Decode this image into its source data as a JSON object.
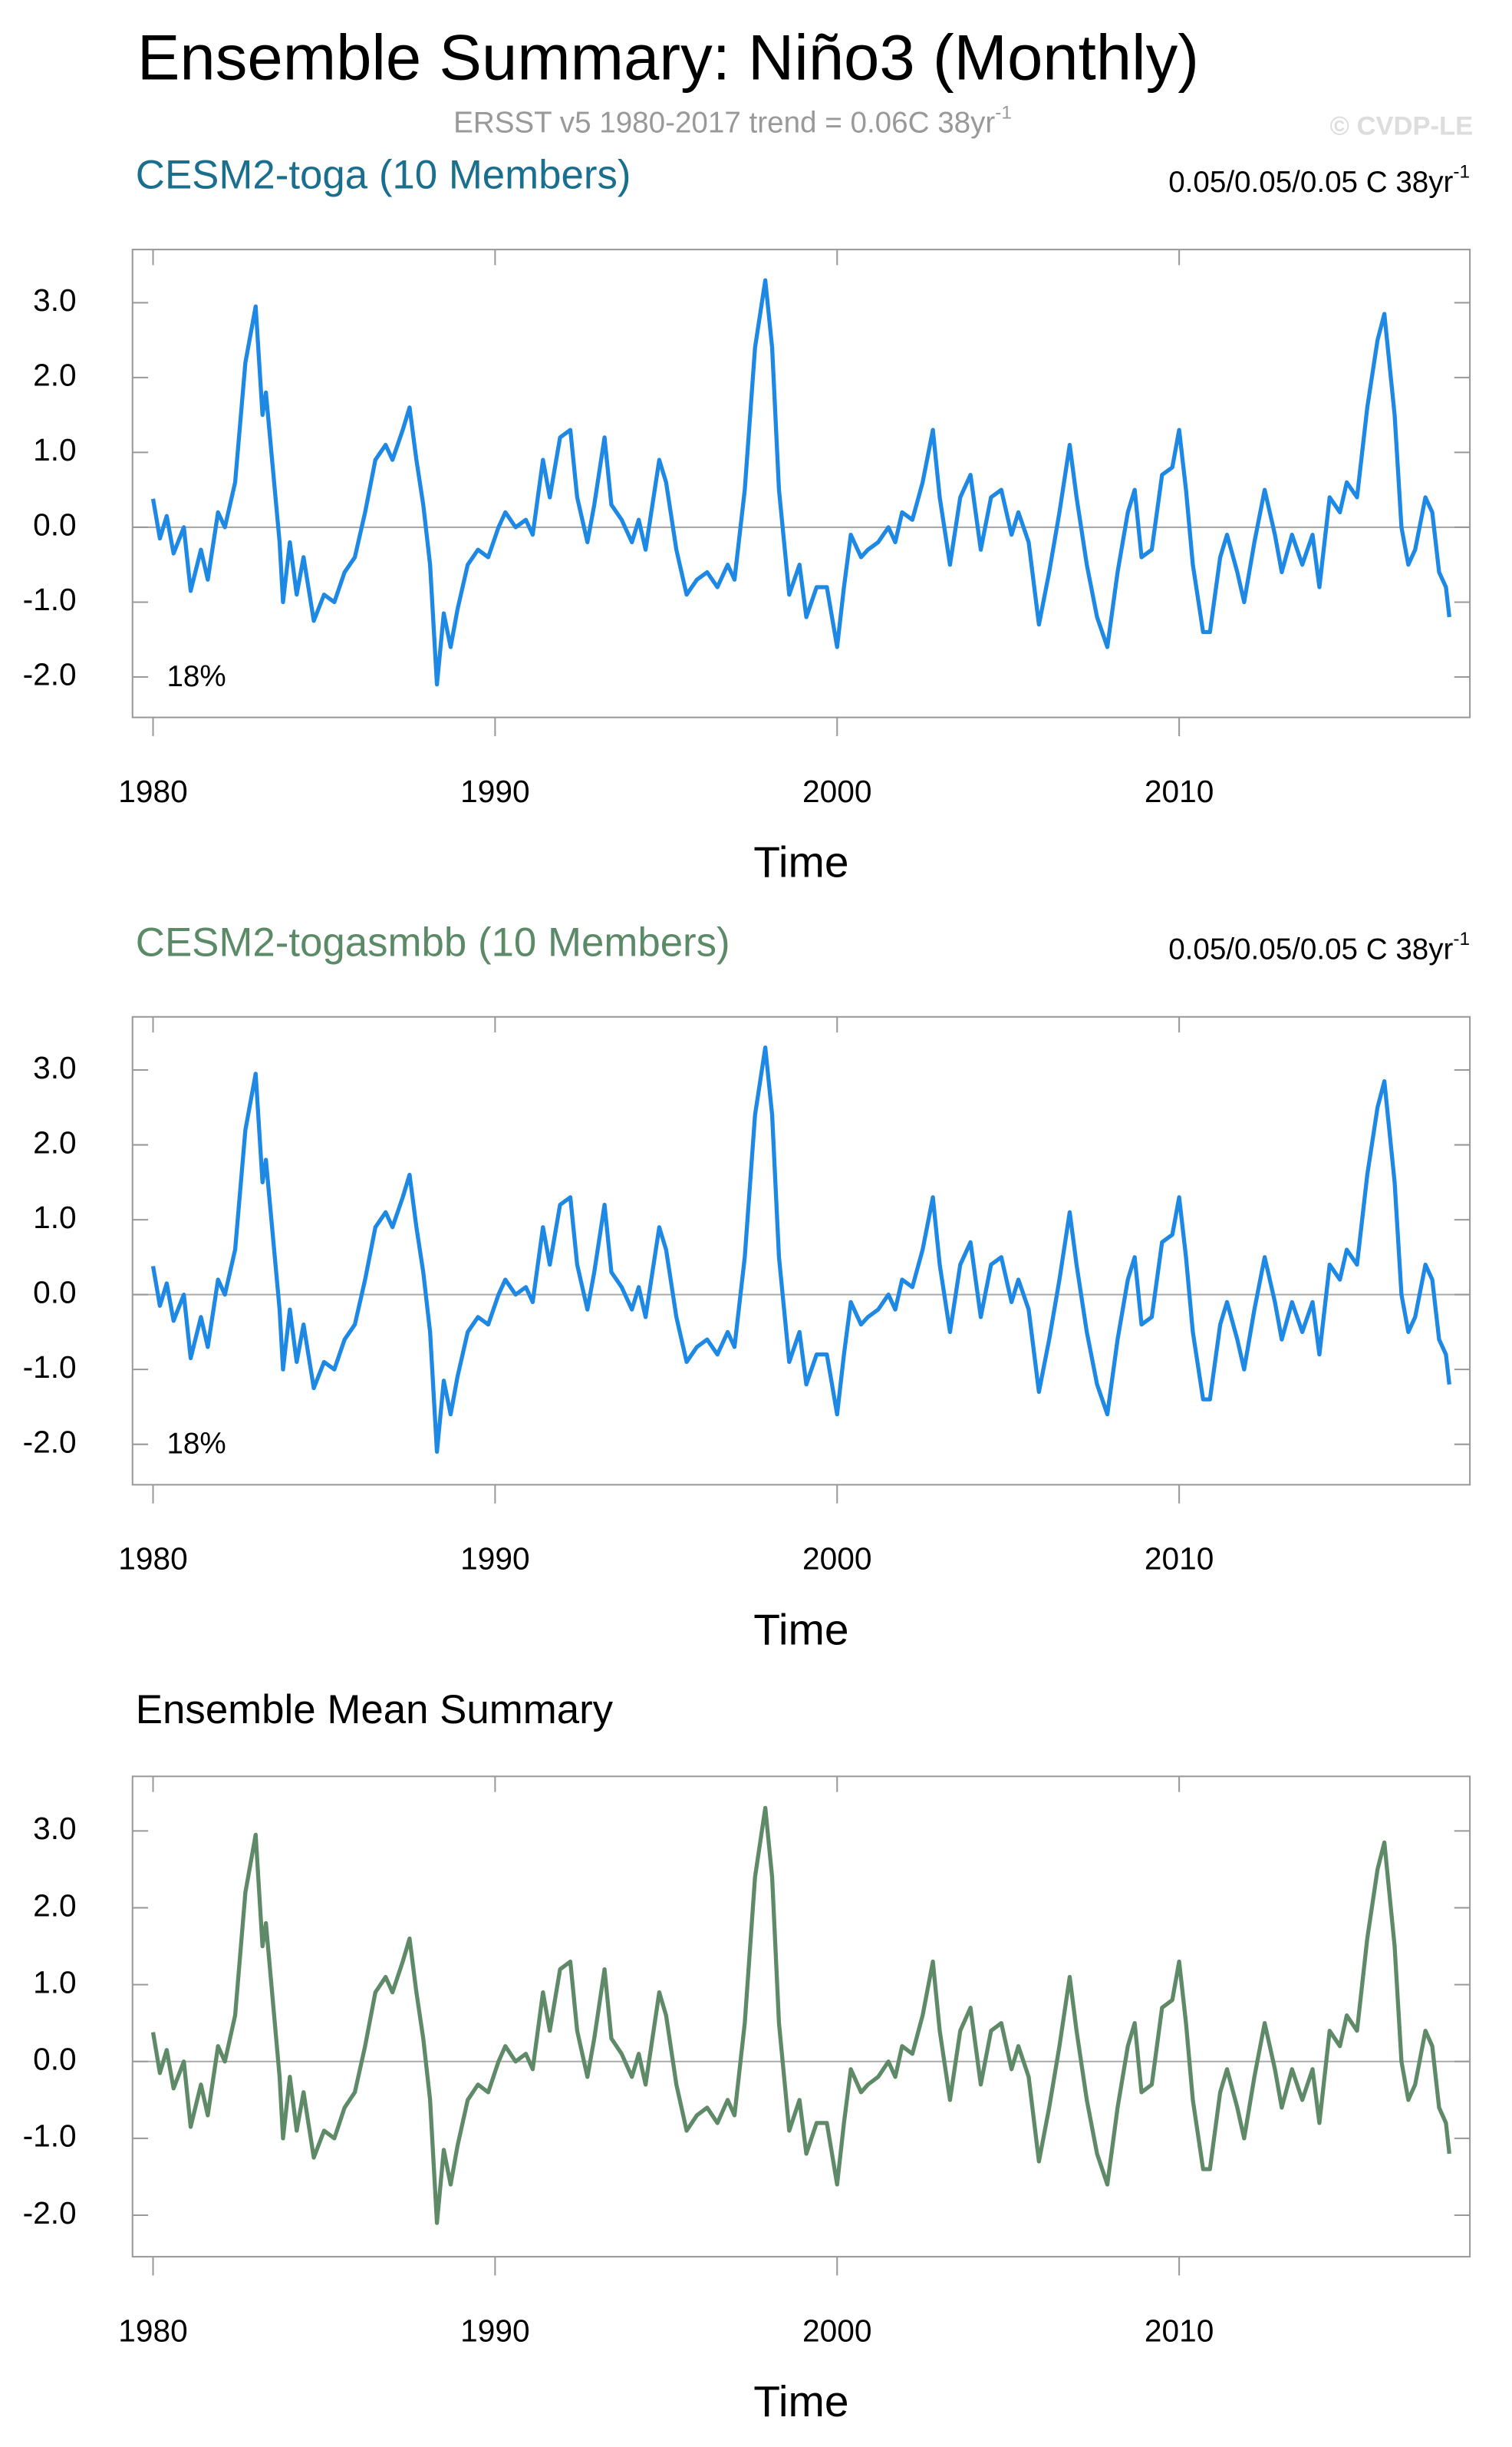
{
  "title": "Ensemble Summary: Niño3 (Monthly)",
  "subtitle": {
    "text": "ERSST v5 1980-2017 trend = 0.06C 38yr",
    "exponent": "-1"
  },
  "credit": "© CVDP-LE",
  "chart_data": [
    {
      "type": "line",
      "title": "CESM2-toga (10 Members)",
      "title_color": "#1a6e8e",
      "trend": {
        "text": "0.05/0.05/0.05 C 38yr",
        "exponent": "-1"
      },
      "annotation": "18%",
      "x_label": "Time",
      "color": "#1e88e5",
      "xlim": [
        1979.4,
        2018.5
      ],
      "xticks": [
        1980,
        1990,
        2000,
        2010
      ],
      "ylim": [
        -2.54,
        3.71
      ],
      "yticks": [
        {
          "value": -2,
          "label": "-2.0"
        },
        {
          "value": -1,
          "label": "-1.0"
        },
        {
          "value": 0,
          "label": "0.0"
        },
        {
          "value": 1,
          "label": "1.0"
        },
        {
          "value": 2,
          "label": "2.0"
        },
        {
          "value": 3,
          "label": "3.0"
        }
      ],
      "x": [
        1980.0,
        1980.2,
        1980.4,
        1980.6,
        1980.9,
        1981.1,
        1981.4,
        1981.6,
        1981.9,
        1982.1,
        1982.4,
        1982.7,
        1983.0,
        1983.2,
        1983.3,
        1983.5,
        1983.7,
        1983.8,
        1984.0,
        1984.2,
        1984.4,
        1984.7,
        1985.0,
        1985.3,
        1985.6,
        1985.9,
        1986.2,
        1986.5,
        1986.8,
        1987.0,
        1987.3,
        1987.5,
        1987.7,
        1987.9,
        1988.1,
        1988.3,
        1988.5,
        1988.7,
        1988.9,
        1989.2,
        1989.5,
        1989.8,
        1990.1,
        1990.3,
        1990.6,
        1990.9,
        1991.1,
        1991.4,
        1991.6,
        1991.9,
        1992.2,
        1992.4,
        1992.7,
        1992.9,
        1993.2,
        1993.4,
        1993.7,
        1994.0,
        1994.2,
        1994.4,
        1994.8,
        1995.0,
        1995.3,
        1995.6,
        1995.9,
        1996.2,
        1996.5,
        1996.8,
        1997.0,
        1997.3,
        1997.6,
        1997.9,
        1998.1,
        1998.3,
        1998.6,
        1998.9,
        1999.1,
        1999.4,
        1999.7,
        2000.0,
        2000.2,
        2000.4,
        2000.7,
        2000.9,
        2001.2,
        2001.5,
        2001.7,
        2001.9,
        2002.2,
        2002.5,
        2002.8,
        2003.0,
        2003.3,
        2003.6,
        2003.9,
        2004.2,
        2004.5,
        2004.8,
        2005.1,
        2005.3,
        2005.6,
        2005.9,
        2006.2,
        2006.5,
        2006.8,
        2007.0,
        2007.3,
        2007.6,
        2007.9,
        2008.2,
        2008.5,
        2008.7,
        2008.9,
        2009.2,
        2009.5,
        2009.8,
        2010.0,
        2010.2,
        2010.4,
        2010.7,
        2010.9,
        2011.2,
        2011.4,
        2011.7,
        2011.9,
        2012.2,
        2012.5,
        2012.8,
        2013.0,
        2013.3,
        2013.6,
        2013.9,
        2014.1,
        2014.4,
        2014.7,
        2014.9,
        2015.2,
        2015.5,
        2015.8,
        2016.0,
        2016.3,
        2016.5,
        2016.7,
        2016.9,
        2017.2,
        2017.4,
        2017.6,
        2017.8,
        2017.9
      ],
      "values": [
        0.38,
        -0.15,
        0.15,
        -0.35,
        0.0,
        -0.85,
        -0.3,
        -0.7,
        0.2,
        0.0,
        0.6,
        2.2,
        2.95,
        1.5,
        1.8,
        0.8,
        -0.2,
        -1.0,
        -0.2,
        -0.9,
        -0.4,
        -1.25,
        -0.9,
        -1.0,
        -0.6,
        -0.4,
        0.2,
        0.9,
        1.1,
        0.9,
        1.3,
        1.6,
        0.9,
        0.3,
        -0.5,
        -2.1,
        -1.15,
        -1.6,
        -1.1,
        -0.5,
        -0.3,
        -0.4,
        0.0,
        0.2,
        0.0,
        0.1,
        -0.1,
        0.9,
        0.4,
        1.2,
        1.3,
        0.4,
        -0.2,
        0.3,
        1.2,
        0.3,
        0.1,
        -0.2,
        0.1,
        -0.3,
        0.9,
        0.6,
        -0.3,
        -0.9,
        -0.7,
        -0.6,
        -0.8,
        -0.5,
        -0.7,
        0.5,
        2.4,
        3.3,
        2.4,
        0.5,
        -0.9,
        -0.5,
        -1.2,
        -0.8,
        -0.8,
        -1.6,
        -0.8,
        -0.1,
        -0.4,
        -0.3,
        -0.2,
        0.0,
        -0.2,
        0.2,
        0.1,
        0.6,
        1.3,
        0.4,
        -0.5,
        0.4,
        0.7,
        -0.3,
        0.4,
        0.5,
        -0.1,
        0.2,
        -0.2,
        -1.3,
        -0.6,
        0.2,
        1.1,
        0.4,
        -0.5,
        -1.2,
        -1.6,
        -0.6,
        0.2,
        0.5,
        -0.4,
        -0.3,
        0.7,
        0.8,
        1.3,
        0.5,
        -0.5,
        -1.4,
        -1.4,
        -0.4,
        -0.1,
        -0.6,
        -1.0,
        -0.2,
        0.5,
        -0.1,
        -0.6,
        -0.1,
        -0.5,
        -0.1,
        -0.8,
        0.4,
        0.2,
        0.6,
        0.4,
        1.6,
        2.5,
        2.85,
        1.5,
        0.0,
        -0.5,
        -0.3,
        0.4,
        0.2,
        -0.6,
        -0.8,
        -1.2
      ]
    },
    {
      "type": "line",
      "title": "CESM2-togasmbb (10 Members)",
      "title_color": "#5b8a66",
      "trend": {
        "text": "0.05/0.05/0.05 C 38yr",
        "exponent": "-1"
      },
      "annotation": "18%",
      "x_label": "Time",
      "color": "#1e88e5",
      "xlim": [
        1979.4,
        2018.5
      ],
      "xticks": [
        1980,
        1990,
        2000,
        2010
      ],
      "ylim": [
        -2.54,
        3.71
      ],
      "yticks": [
        {
          "value": -2,
          "label": "-2.0"
        },
        {
          "value": -1,
          "label": "-1.0"
        },
        {
          "value": 0,
          "label": "0.0"
        },
        {
          "value": 1,
          "label": "1.0"
        },
        {
          "value": 2,
          "label": "2.0"
        },
        {
          "value": 3,
          "label": "3.0"
        }
      ],
      "x": [
        1980.0,
        1980.2,
        1980.4,
        1980.6,
        1980.9,
        1981.1,
        1981.4,
        1981.6,
        1981.9,
        1982.1,
        1982.4,
        1982.7,
        1983.0,
        1983.2,
        1983.3,
        1983.5,
        1983.7,
        1983.8,
        1984.0,
        1984.2,
        1984.4,
        1984.7,
        1985.0,
        1985.3,
        1985.6,
        1985.9,
        1986.2,
        1986.5,
        1986.8,
        1987.0,
        1987.3,
        1987.5,
        1987.7,
        1987.9,
        1988.1,
        1988.3,
        1988.5,
        1988.7,
        1988.9,
        1989.2,
        1989.5,
        1989.8,
        1990.1,
        1990.3,
        1990.6,
        1990.9,
        1991.1,
        1991.4,
        1991.6,
        1991.9,
        1992.2,
        1992.4,
        1992.7,
        1992.9,
        1993.2,
        1993.4,
        1993.7,
        1994.0,
        1994.2,
        1994.4,
        1994.8,
        1995.0,
        1995.3,
        1995.6,
        1995.9,
        1996.2,
        1996.5,
        1996.8,
        1997.0,
        1997.3,
        1997.6,
        1997.9,
        1998.1,
        1998.3,
        1998.6,
        1998.9,
        1999.1,
        1999.4,
        1999.7,
        2000.0,
        2000.2,
        2000.4,
        2000.7,
        2000.9,
        2001.2,
        2001.5,
        2001.7,
        2001.9,
        2002.2,
        2002.5,
        2002.8,
        2003.0,
        2003.3,
        2003.6,
        2003.9,
        2004.2,
        2004.5,
        2004.8,
        2005.1,
        2005.3,
        2005.6,
        2005.9,
        2006.2,
        2006.5,
        2006.8,
        2007.0,
        2007.3,
        2007.6,
        2007.9,
        2008.2,
        2008.5,
        2008.7,
        2008.9,
        2009.2,
        2009.5,
        2009.8,
        2010.0,
        2010.2,
        2010.4,
        2010.7,
        2010.9,
        2011.2,
        2011.4,
        2011.7,
        2011.9,
        2012.2,
        2012.5,
        2012.8,
        2013.0,
        2013.3,
        2013.6,
        2013.9,
        2014.1,
        2014.4,
        2014.7,
        2014.9,
        2015.2,
        2015.5,
        2015.8,
        2016.0,
        2016.3,
        2016.5,
        2016.7,
        2016.9,
        2017.2,
        2017.4,
        2017.6,
        2017.8,
        2017.9
      ],
      "values": [
        0.38,
        -0.15,
        0.15,
        -0.35,
        0.0,
        -0.85,
        -0.3,
        -0.7,
        0.2,
        0.0,
        0.6,
        2.2,
        2.95,
        1.5,
        1.8,
        0.8,
        -0.2,
        -1.0,
        -0.2,
        -0.9,
        -0.4,
        -1.25,
        -0.9,
        -1.0,
        -0.6,
        -0.4,
        0.2,
        0.9,
        1.1,
        0.9,
        1.3,
        1.6,
        0.9,
        0.3,
        -0.5,
        -2.1,
        -1.15,
        -1.6,
        -1.1,
        -0.5,
        -0.3,
        -0.4,
        0.0,
        0.2,
        0.0,
        0.1,
        -0.1,
        0.9,
        0.4,
        1.2,
        1.3,
        0.4,
        -0.2,
        0.3,
        1.2,
        0.3,
        0.1,
        -0.2,
        0.1,
        -0.3,
        0.9,
        0.6,
        -0.3,
        -0.9,
        -0.7,
        -0.6,
        -0.8,
        -0.5,
        -0.7,
        0.5,
        2.4,
        3.3,
        2.4,
        0.5,
        -0.9,
        -0.5,
        -1.2,
        -0.8,
        -0.8,
        -1.6,
        -0.8,
        -0.1,
        -0.4,
        -0.3,
        -0.2,
        0.0,
        -0.2,
        0.2,
        0.1,
        0.6,
        1.3,
        0.4,
        -0.5,
        0.4,
        0.7,
        -0.3,
        0.4,
        0.5,
        -0.1,
        0.2,
        -0.2,
        -1.3,
        -0.6,
        0.2,
        1.1,
        0.4,
        -0.5,
        -1.2,
        -1.6,
        -0.6,
        0.2,
        0.5,
        -0.4,
        -0.3,
        0.7,
        0.8,
        1.3,
        0.5,
        -0.5,
        -1.4,
        -1.4,
        -0.4,
        -0.1,
        -0.6,
        -1.0,
        -0.2,
        0.5,
        -0.1,
        -0.6,
        -0.1,
        -0.5,
        -0.1,
        -0.8,
        0.4,
        0.2,
        0.6,
        0.4,
        1.6,
        2.5,
        2.85,
        1.5,
        0.0,
        -0.5,
        -0.3,
        0.4,
        0.2,
        -0.6,
        -0.8,
        -1.2
      ]
    },
    {
      "type": "line",
      "title": "Ensemble Mean Summary",
      "title_color": "#000000",
      "x_label": "Time",
      "color": "#5e8a67",
      "xlim": [
        1979.4,
        2018.5
      ],
      "xticks": [
        1980,
        1990,
        2000,
        2010
      ],
      "ylim": [
        -2.54,
        3.71
      ],
      "yticks": [
        {
          "value": -2,
          "label": "-2.0"
        },
        {
          "value": -1,
          "label": "-1.0"
        },
        {
          "value": 0,
          "label": "0.0"
        },
        {
          "value": 1,
          "label": "1.0"
        },
        {
          "value": 2,
          "label": "2.0"
        },
        {
          "value": 3,
          "label": "3.0"
        }
      ],
      "x": [
        1980.0,
        1980.2,
        1980.4,
        1980.6,
        1980.9,
        1981.1,
        1981.4,
        1981.6,
        1981.9,
        1982.1,
        1982.4,
        1982.7,
        1983.0,
        1983.2,
        1983.3,
        1983.5,
        1983.7,
        1983.8,
        1984.0,
        1984.2,
        1984.4,
        1984.7,
        1985.0,
        1985.3,
        1985.6,
        1985.9,
        1986.2,
        1986.5,
        1986.8,
        1987.0,
        1987.3,
        1987.5,
        1987.7,
        1987.9,
        1988.1,
        1988.3,
        1988.5,
        1988.7,
        1988.9,
        1989.2,
        1989.5,
        1989.8,
        1990.1,
        1990.3,
        1990.6,
        1990.9,
        1991.1,
        1991.4,
        1991.6,
        1991.9,
        1992.2,
        1992.4,
        1992.7,
        1992.9,
        1993.2,
        1993.4,
        1993.7,
        1994.0,
        1994.2,
        1994.4,
        1994.8,
        1995.0,
        1995.3,
        1995.6,
        1995.9,
        1996.2,
        1996.5,
        1996.8,
        1997.0,
        1997.3,
        1997.6,
        1997.9,
        1998.1,
        1998.3,
        1998.6,
        1998.9,
        1999.1,
        1999.4,
        1999.7,
        2000.0,
        2000.2,
        2000.4,
        2000.7,
        2000.9,
        2001.2,
        2001.5,
        2001.7,
        2001.9,
        2002.2,
        2002.5,
        2002.8,
        2003.0,
        2003.3,
        2003.6,
        2003.9,
        2004.2,
        2004.5,
        2004.8,
        2005.1,
        2005.3,
        2005.6,
        2005.9,
        2006.2,
        2006.5,
        2006.8,
        2007.0,
        2007.3,
        2007.6,
        2007.9,
        2008.2,
        2008.5,
        2008.7,
        2008.9,
        2009.2,
        2009.5,
        2009.8,
        2010.0,
        2010.2,
        2010.4,
        2010.7,
        2010.9,
        2011.2,
        2011.4,
        2011.7,
        2011.9,
        2012.2,
        2012.5,
        2012.8,
        2013.0,
        2013.3,
        2013.6,
        2013.9,
        2014.1,
        2014.4,
        2014.7,
        2014.9,
        2015.2,
        2015.5,
        2015.8,
        2016.0,
        2016.3,
        2016.5,
        2016.7,
        2016.9,
        2017.2,
        2017.4,
        2017.6,
        2017.8,
        2017.9
      ],
      "values": [
        0.38,
        -0.15,
        0.15,
        -0.35,
        0.0,
        -0.85,
        -0.3,
        -0.7,
        0.2,
        0.0,
        0.6,
        2.2,
        2.95,
        1.5,
        1.8,
        0.8,
        -0.2,
        -1.0,
        -0.2,
        -0.9,
        -0.4,
        -1.25,
        -0.9,
        -1.0,
        -0.6,
        -0.4,
        0.2,
        0.9,
        1.1,
        0.9,
        1.3,
        1.6,
        0.9,
        0.3,
        -0.5,
        -2.1,
        -1.15,
        -1.6,
        -1.1,
        -0.5,
        -0.3,
        -0.4,
        0.0,
        0.2,
        0.0,
        0.1,
        -0.1,
        0.9,
        0.4,
        1.2,
        1.3,
        0.4,
        -0.2,
        0.3,
        1.2,
        0.3,
        0.1,
        -0.2,
        0.1,
        -0.3,
        0.9,
        0.6,
        -0.3,
        -0.9,
        -0.7,
        -0.6,
        -0.8,
        -0.5,
        -0.7,
        0.5,
        2.4,
        3.3,
        2.4,
        0.5,
        -0.9,
        -0.5,
        -1.2,
        -0.8,
        -0.8,
        -1.6,
        -0.8,
        -0.1,
        -0.4,
        -0.3,
        -0.2,
        0.0,
        -0.2,
        0.2,
        0.1,
        0.6,
        1.3,
        0.4,
        -0.5,
        0.4,
        0.7,
        -0.3,
        0.4,
        0.5,
        -0.1,
        0.2,
        -0.2,
        -1.3,
        -0.6,
        0.2,
        1.1,
        0.4,
        -0.5,
        -1.2,
        -1.6,
        -0.6,
        0.2,
        0.5,
        -0.4,
        -0.3,
        0.7,
        0.8,
        1.3,
        0.5,
        -0.5,
        -1.4,
        -1.4,
        -0.4,
        -0.1,
        -0.6,
        -1.0,
        -0.2,
        0.5,
        -0.1,
        -0.6,
        -0.1,
        -0.5,
        -0.1,
        -0.8,
        0.4,
        0.2,
        0.6,
        0.4,
        1.6,
        2.5,
        2.85,
        1.5,
        0.0,
        -0.5,
        -0.3,
        0.4,
        0.2,
        -0.6,
        -0.8,
        -1.2
      ]
    }
  ]
}
